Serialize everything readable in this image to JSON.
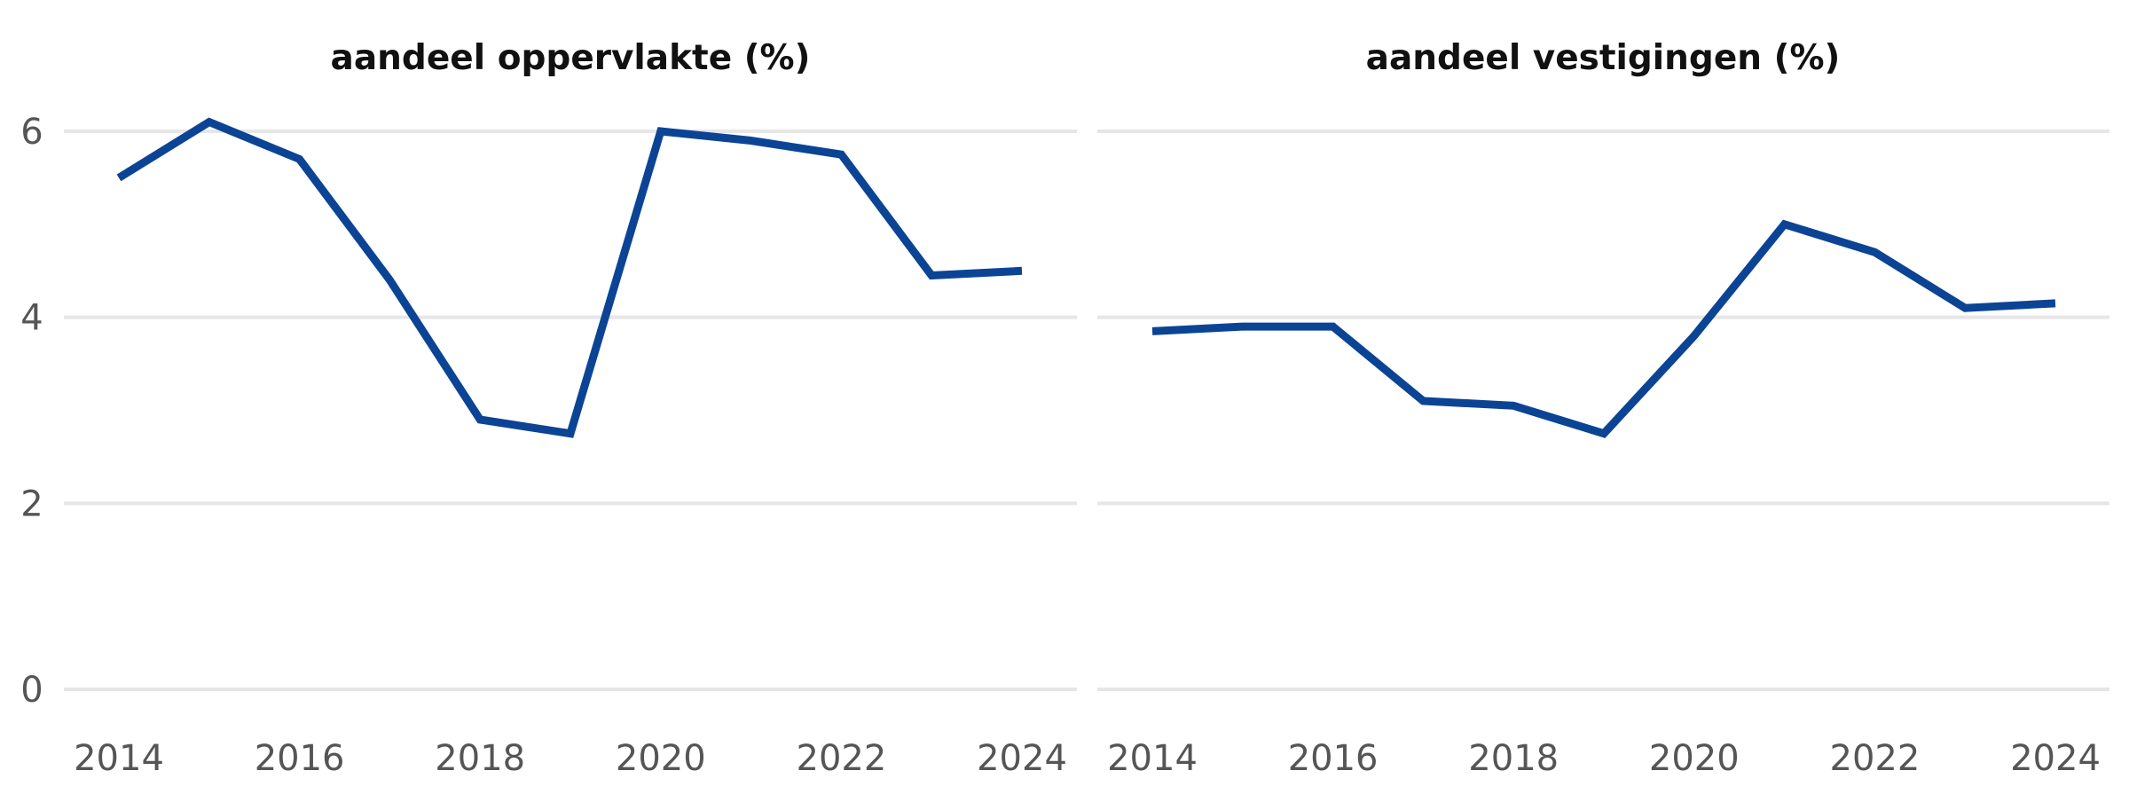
{
  "colors": {
    "series": "#0b4495",
    "grid": "#e6e6e6",
    "tick_text": "#555555",
    "title_text": "#111111"
  },
  "chart_data": [
    {
      "type": "line",
      "title": "aandeel oppervlakte (%)",
      "xlabel": "",
      "ylabel": "",
      "x": [
        2014,
        2015,
        2016,
        2017,
        2018,
        2019,
        2020,
        2021,
        2022,
        2023,
        2024
      ],
      "series": [
        {
          "values": [
            5.5,
            6.1,
            5.7,
            4.4,
            2.9,
            2.75,
            6.0,
            5.9,
            5.75,
            4.45,
            4.5
          ]
        }
      ],
      "x_ticks": [
        "2014",
        "2016",
        "2018",
        "2020",
        "2022",
        "2024"
      ],
      "y_ticks": [
        "0",
        "2",
        "4",
        "6"
      ],
      "xlim": [
        2014,
        2024
      ],
      "ylim": [
        0,
        6
      ],
      "grid": true,
      "y_tick_labels_shown": true
    },
    {
      "type": "line",
      "title": "aandeel vestigingen (%)",
      "xlabel": "",
      "ylabel": "",
      "x": [
        2014,
        2015,
        2016,
        2017,
        2018,
        2019,
        2020,
        2021,
        2022,
        2023,
        2024
      ],
      "series": [
        {
          "values": [
            3.85,
            3.9,
            3.9,
            3.1,
            3.05,
            2.75,
            3.8,
            5.0,
            4.7,
            4.1,
            4.15
          ]
        }
      ],
      "x_ticks": [
        "2014",
        "2016",
        "2018",
        "2020",
        "2022",
        "2024"
      ],
      "y_ticks": [
        "0",
        "2",
        "4",
        "6"
      ],
      "xlim": [
        2014,
        2024
      ],
      "ylim": [
        0,
        6
      ],
      "grid": true,
      "y_tick_labels_shown": false
    }
  ]
}
